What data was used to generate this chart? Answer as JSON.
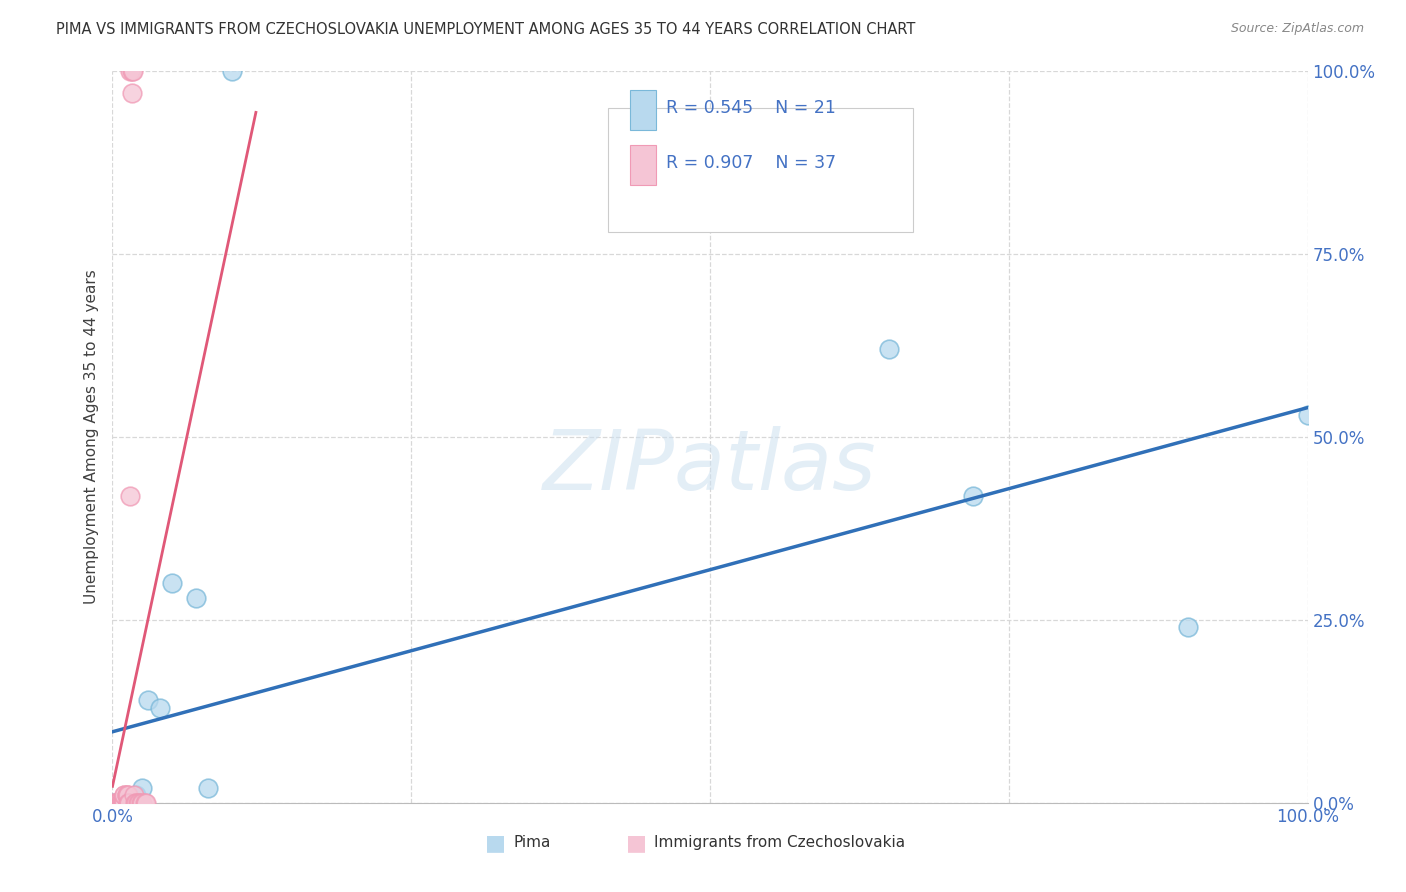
{
  "title": "PIMA VS IMMIGRANTS FROM CZECHOSLOVAKIA UNEMPLOYMENT AMONG AGES 35 TO 44 YEARS CORRELATION CHART",
  "source": "Source: ZipAtlas.com",
  "ylabel": "Unemployment Among Ages 35 to 44 years",
  "watermark": "ZIPatlas",
  "pima_R": 0.545,
  "pima_N": 21,
  "czech_R": 0.907,
  "czech_N": 37,
  "pima_color": "#7ab8d9",
  "pima_fill": "#b8d9ee",
  "czech_color": "#f09ab5",
  "czech_fill": "#f5c5d5",
  "blue_line_color": "#3070b8",
  "pink_line_color": "#e05878",
  "legend_text_color": "#4472c4",
  "pima_points_x": [
    0.0,
    0.005,
    0.007,
    0.008,
    0.01,
    0.01,
    0.012,
    0.015,
    0.018,
    0.02,
    0.025,
    0.03,
    0.04,
    0.05,
    0.07,
    0.08,
    0.1,
    0.65,
    0.72,
    0.9,
    1.0
  ],
  "pima_points_y": [
    0.0,
    0.0,
    0.0,
    0.0,
    0.0,
    0.0,
    0.0,
    0.0,
    0.0,
    0.01,
    0.02,
    0.14,
    0.13,
    0.3,
    0.28,
    0.02,
    1.0,
    0.62,
    0.42,
    0.24,
    0.53
  ],
  "czech_points_x": [
    0.0,
    0.002,
    0.003,
    0.005,
    0.005,
    0.005,
    0.006,
    0.007,
    0.007,
    0.008,
    0.008,
    0.009,
    0.009,
    0.01,
    0.01,
    0.01,
    0.01,
    0.01,
    0.012,
    0.012,
    0.013,
    0.013,
    0.014,
    0.015,
    0.015,
    0.016,
    0.016,
    0.017,
    0.018,
    0.019,
    0.02,
    0.021,
    0.022,
    0.024,
    0.025,
    0.027,
    0.028
  ],
  "czech_points_y": [
    0.0,
    0.0,
    0.0,
    0.0,
    0.0,
    0.0,
    0.0,
    0.0,
    0.0,
    0.0,
    0.0,
    0.0,
    0.0,
    0.0,
    0.0,
    0.0,
    0.01,
    0.01,
    0.01,
    0.01,
    0.01,
    0.0,
    0.0,
    0.42,
    1.0,
    1.0,
    0.97,
    1.0,
    0.01,
    0.0,
    0.0,
    0.0,
    0.0,
    0.0,
    0.0,
    0.0,
    0.0
  ],
  "xlim": [
    0.0,
    1.0
  ],
  "ylim": [
    0.0,
    1.0
  ],
  "xticks": [
    0.0,
    0.25,
    0.5,
    0.75,
    1.0
  ],
  "xticklabels_ends": [
    "0.0%",
    "100.0%"
  ],
  "yticks": [
    0.0,
    0.25,
    0.5,
    0.75,
    1.0
  ],
  "yticklabels": [
    "0.0%",
    "25.0%",
    "50.0%",
    "75.0%",
    "100.0%"
  ],
  "background_color": "#ffffff",
  "grid_color": "#d8d8d8",
  "legend_box_color": "#e8e8e8"
}
